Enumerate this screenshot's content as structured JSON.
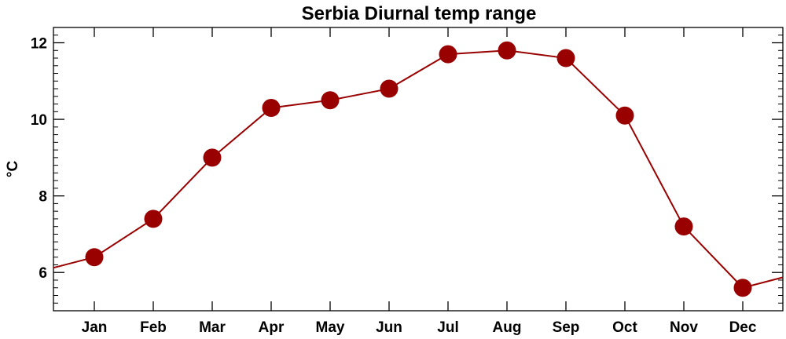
{
  "chart_data": {
    "type": "line",
    "title": "Serbia Diurnal temp range",
    "xlabel": "",
    "ylabel": "°C",
    "categories": [
      "Jan",
      "Feb",
      "Mar",
      "Apr",
      "May",
      "Jun",
      "Jul",
      "Aug",
      "Sep",
      "Oct",
      "Nov",
      "Dec"
    ],
    "series": [
      {
        "values": [
          6.4,
          7.4,
          9.0,
          10.3,
          10.5,
          10.8,
          11.7,
          11.8,
          11.6,
          10.1,
          7.2,
          5.6
        ]
      }
    ],
    "wrap_values": {
      "before": 6.0,
      "after": 6.0
    },
    "ylim": [
      5.0,
      12.4
    ],
    "yticks": [
      6,
      8,
      10,
      12
    ],
    "ytick_labels": [
      "6",
      "8",
      "10",
      "12"
    ],
    "grid": false,
    "colors": {
      "line": "#990000",
      "marker": "#990000"
    }
  }
}
